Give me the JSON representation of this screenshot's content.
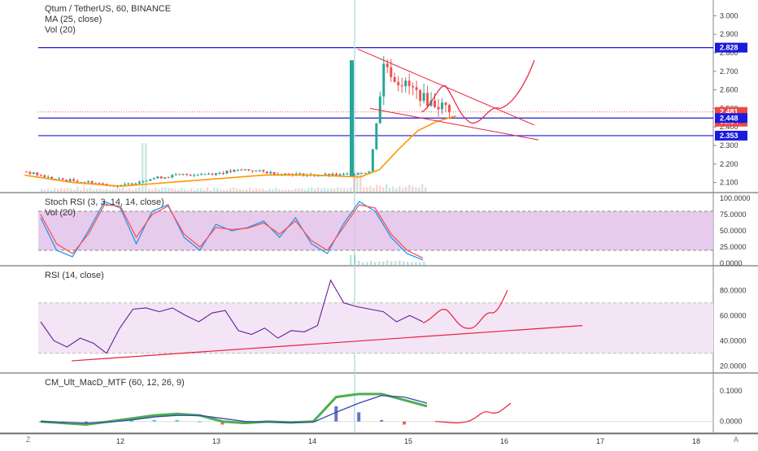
{
  "main": {
    "title_line": "Qtum / TetherUS, 60, BINANCE",
    "ma_label": "MA (25, close)",
    "vol_label": "Vol (20)",
    "price_ticks": [
      "3.000",
      "2.900",
      "2.800",
      "2.700",
      "2.600",
      "2.500",
      "2.400",
      "2.300",
      "2.200",
      "2.100"
    ],
    "badges": [
      {
        "text": "2.828",
        "color": "#1b1bdb"
      },
      {
        "text": "2.481",
        "color": "#f04747"
      },
      {
        "text": "06:54",
        "color": "#f04747"
      },
      {
        "text": "2.448",
        "color": "#1b1bdb"
      },
      {
        "text": "2.353",
        "color": "#1b1bdb"
      }
    ]
  },
  "stoch": {
    "label": "Stoch RSI (3, 3, 14, 14, close)",
    "vol_label": "Vol (20)",
    "ticks": [
      "100.0000",
      "75.0000",
      "50.0000",
      "25.0000",
      "0.0000"
    ]
  },
  "rsi": {
    "label": "RSI (14, close)",
    "ticks": [
      "80.0000",
      "60.0000",
      "40.0000",
      "20.0000"
    ]
  },
  "macd": {
    "label": "CM_Ult_MacD_MTF (60, 12, 26, 9)",
    "ticks": [
      "0.1000",
      "0.0000"
    ]
  },
  "time_axis": {
    "labels": [
      "12",
      "13",
      "14",
      "15",
      "16",
      "17",
      "18"
    ]
  },
  "corners": {
    "left": "Z",
    "right": "A"
  },
  "colors": {
    "up": "#26a69a",
    "down": "#ef5350",
    "ma": "#ff9800",
    "hline": "#1b1bdb",
    "annotation": "#e91e3c",
    "stoch_k": "#2196f3",
    "stoch_d": "#ff5252",
    "stoch_band": "#e1bee7",
    "rsi": "#6a1b9a",
    "rsi_band": "#f3e5f5"
  },
  "chart_data": [
    {
      "type": "candlestick",
      "title": "Qtum / TetherUS, 60, BINANCE",
      "x_range": [
        "11",
        "18"
      ],
      "ylim": [
        2.05,
        3.05
      ],
      "horizontal_levels": [
        2.828,
        2.448,
        2.353
      ],
      "last_price": 2.481,
      "series": [
        {
          "name": "MA (25, close)",
          "points": [
            [
              11.0,
              2.14
            ],
            [
              11.5,
              2.1
            ],
            [
              12.0,
              2.08
            ],
            [
              12.5,
              2.1
            ],
            [
              13.0,
              2.12
            ],
            [
              13.5,
              2.14
            ],
            [
              14.0,
              2.14
            ],
            [
              14.5,
              2.13
            ],
            [
              14.7,
              2.17
            ],
            [
              14.9,
              2.28
            ],
            [
              15.1,
              2.38
            ],
            [
              15.3,
              2.43
            ],
            [
              15.5,
              2.46
            ]
          ]
        }
      ],
      "candles_close_path": [
        [
          11.0,
          2.16
        ],
        [
          11.3,
          2.12
        ],
        [
          11.7,
          2.1
        ],
        [
          12.0,
          2.08
        ],
        [
          12.3,
          2.12
        ],
        [
          12.6,
          2.14
        ],
        [
          13.0,
          2.15
        ],
        [
          13.3,
          2.17
        ],
        [
          13.6,
          2.15
        ],
        [
          14.0,
          2.14
        ],
        [
          14.3,
          2.14
        ],
        [
          14.6,
          2.16
        ],
        [
          14.7,
          2.55
        ],
        [
          14.75,
          2.76
        ],
        [
          14.85,
          2.66
        ],
        [
          15.0,
          2.62
        ],
        [
          15.1,
          2.58
        ],
        [
          15.2,
          2.54
        ],
        [
          15.3,
          2.52
        ],
        [
          15.45,
          2.5
        ]
      ],
      "annotations": [
        "descending wedge",
        "projected path"
      ]
    },
    {
      "type": "line",
      "title": "Stoch RSI (3, 3, 14, 14, close)",
      "ylim": [
        0,
        100
      ],
      "bands": [
        20,
        80
      ],
      "series": [
        {
          "name": "%K",
          "values": [
            70,
            20,
            10,
            50,
            95,
            85,
            30,
            80,
            90,
            40,
            20,
            60,
            50,
            55,
            65,
            40,
            70,
            30,
            15,
            60,
            95,
            80,
            40,
            15,
            5
          ]
        },
        {
          "name": "%D",
          "values": [
            75,
            30,
            15,
            45,
            90,
            88,
            40,
            75,
            88,
            45,
            25,
            55,
            52,
            54,
            62,
            45,
            65,
            35,
            20,
            55,
            90,
            85,
            45,
            20,
            8
          ]
        }
      ]
    },
    {
      "type": "line",
      "title": "RSI (14, close)",
      "ylim": [
        15,
        95
      ],
      "bands": [
        30,
        70
      ],
      "series": [
        {
          "name": "RSI",
          "values": [
            55,
            40,
            35,
            42,
            38,
            30,
            50,
            65,
            66,
            63,
            66,
            60,
            55,
            62,
            64,
            48,
            45,
            50,
            42,
            48,
            47,
            52,
            88,
            70,
            67,
            65,
            63,
            55,
            60,
            55
          ]
        }
      ]
    },
    {
      "type": "histogram",
      "title": "CM_Ult_MacD_MTF (60, 12, 26, 9)",
      "ylim": [
        -0.03,
        0.14
      ],
      "series": [
        {
          "name": "MACD",
          "values": [
            0.0,
            -0.005,
            -0.01,
            0.0,
            0.01,
            0.02,
            0.025,
            0.02,
            0.0,
            -0.005,
            0.0,
            -0.003,
            0.0,
            0.08,
            0.09,
            0.09,
            0.07,
            0.05
          ]
        },
        {
          "name": "Signal",
          "values": [
            0.0,
            -0.003,
            -0.005,
            -0.002,
            0.005,
            0.015,
            0.02,
            0.02,
            0.01,
            0.0,
            -0.002,
            -0.003,
            -0.002,
            0.03,
            0.06,
            0.085,
            0.08,
            0.06
          ]
        }
      ]
    }
  ]
}
